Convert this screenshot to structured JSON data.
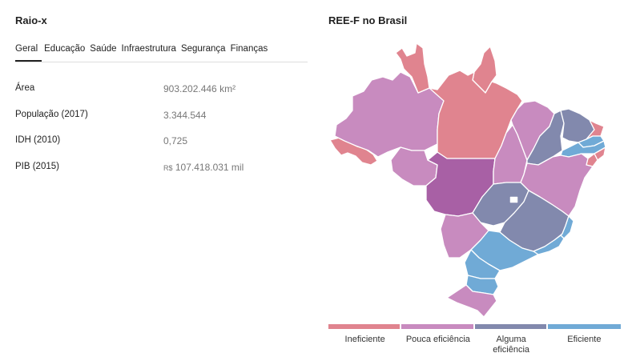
{
  "left": {
    "title": "Raio-x",
    "tabs": [
      "Geral",
      "Educação",
      "Saúde",
      "Infraestrutura",
      "Segurança",
      "Finanças"
    ],
    "active_tab": 0,
    "rows": [
      {
        "label": "Área",
        "value": "903.202.446 km²",
        "currency": ""
      },
      {
        "label": "População (2017)",
        "value": "3.344.544",
        "currency": ""
      },
      {
        "label": "IDH (2010)",
        "value": "0,725",
        "currency": ""
      },
      {
        "label": "PIB (2015)",
        "value": "107.418.031 mil",
        "currency": "R$"
      }
    ]
  },
  "map": {
    "title": "REE-F no Brasil",
    "colors": {
      "ineficiente": "#e0848f",
      "pouca": "#c88bbf",
      "alguma": "#8289ad",
      "eficiente": "#70aad6",
      "selected": "#a860a5"
    },
    "legend": [
      {
        "label": "Ineficiente",
        "color": "#e0848f"
      },
      {
        "label": "Pouca eficiência",
        "color": "#c88bbf"
      },
      {
        "label": "Alguma eficiência",
        "color": "#8289ad"
      },
      {
        "label": "Eficiente",
        "color": "#70aad6"
      }
    ],
    "states": [
      {
        "name": "am",
        "class": "pouca"
      },
      {
        "name": "ac",
        "class": "ineficiente"
      },
      {
        "name": "ro",
        "class": "pouca"
      },
      {
        "name": "rr",
        "class": "ineficiente"
      },
      {
        "name": "pa",
        "class": "ineficiente"
      },
      {
        "name": "ap",
        "class": "ineficiente"
      },
      {
        "name": "mt",
        "class": "selected"
      },
      {
        "name": "to",
        "class": "pouca"
      },
      {
        "name": "ma",
        "class": "pouca"
      },
      {
        "name": "pi",
        "class": "alguma"
      },
      {
        "name": "ce",
        "class": "alguma"
      },
      {
        "name": "rn",
        "class": "ineficiente"
      },
      {
        "name": "pb",
        "class": "eficiente"
      },
      {
        "name": "pe",
        "class": "eficiente"
      },
      {
        "name": "al",
        "class": "ineficiente"
      },
      {
        "name": "se",
        "class": "ineficiente"
      },
      {
        "name": "ba",
        "class": "pouca"
      },
      {
        "name": "go",
        "class": "alguma"
      },
      {
        "name": "df",
        "class": "white"
      },
      {
        "name": "mg",
        "class": "alguma"
      },
      {
        "name": "es",
        "class": "eficiente"
      },
      {
        "name": "ms",
        "class": "pouca"
      },
      {
        "name": "rj",
        "class": "eficiente"
      },
      {
        "name": "sp",
        "class": "eficiente"
      },
      {
        "name": "pr",
        "class": "eficiente"
      },
      {
        "name": "sc",
        "class": "eficiente"
      },
      {
        "name": "rs",
        "class": "pouca"
      }
    ]
  }
}
